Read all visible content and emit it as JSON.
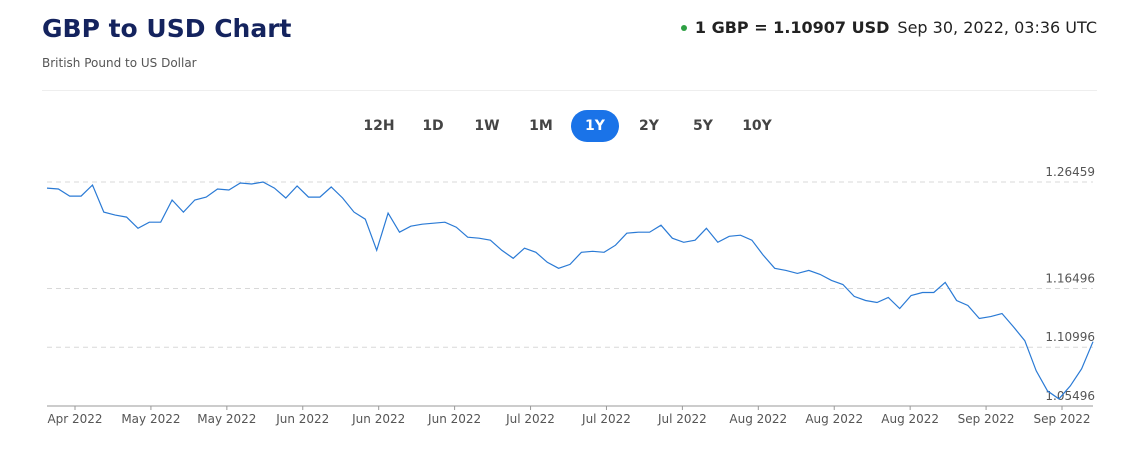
{
  "header": {
    "title": "GBP to USD Chart",
    "subtitle": "British Pound to US Dollar",
    "rate": "1 GBP = 1.10907 USD",
    "timestamp": "Sep 30, 2022, 03:36 UTC"
  },
  "ranges": [
    "12H",
    "1D",
    "1W",
    "1M",
    "1Y",
    "2Y",
    "5Y",
    "10Y"
  ],
  "active_range": "1Y",
  "chart_data": {
    "type": "line",
    "color": "#2a7ad5",
    "xtick_labels": [
      "Apr 2022",
      "May 2022",
      "May 2022",
      "Jun 2022",
      "Jun 2022",
      "Jun 2022",
      "Jul 2022",
      "Jul 2022",
      "Jul 2022",
      "Aug 2022",
      "Aug 2022",
      "Aug 2022",
      "Sep 2022",
      "Sep 2022"
    ],
    "values": [
      1.2589,
      1.258,
      1.2514,
      1.2514,
      1.2618,
      1.2364,
      1.2336,
      1.2317,
      1.2213,
      1.227,
      1.227,
      1.2477,
      1.2364,
      1.2477,
      1.2505,
      1.258,
      1.2571,
      1.2637,
      1.2627,
      1.2646,
      1.2589,
      1.2496,
      1.2608,
      1.2505,
      1.2505,
      1.2599,
      1.2496,
      1.2364,
      1.2298,
      1.2007,
      1.2355,
      1.2176,
      1.2232,
      1.2251,
      1.226,
      1.227,
      1.2223,
      1.2129,
      1.212,
      1.2101,
      1.2007,
      1.1932,
      1.2026,
      1.1988,
      1.1894,
      1.1838,
      1.1875,
      1.1988,
      1.1997,
      1.1988,
      1.2054,
      1.2167,
      1.2176,
      1.2176,
      1.2242,
      1.212,
      1.2082,
      1.2101,
      1.2213,
      1.2082,
      1.2138,
      1.2148,
      1.2101,
      1.196,
      1.1838,
      1.1819,
      1.1791,
      1.1819,
      1.1781,
      1.1725,
      1.1687,
      1.1575,
      1.1537,
      1.1518,
      1.1565,
      1.1462,
      1.1584,
      1.1612,
      1.1612,
      1.1706,
      1.1537,
      1.149,
      1.1368,
      1.1386,
      1.1415,
      1.1292,
      1.1161,
      1.0879,
      1.0691,
      1.0616,
      1.0738,
      1.0898,
      1.1151
    ],
    "ylim": [
      1.05496,
      1.26459
    ],
    "yticks": [
      1.05496,
      1.10996,
      1.16496,
      1.26459
    ],
    "grid": true
  }
}
